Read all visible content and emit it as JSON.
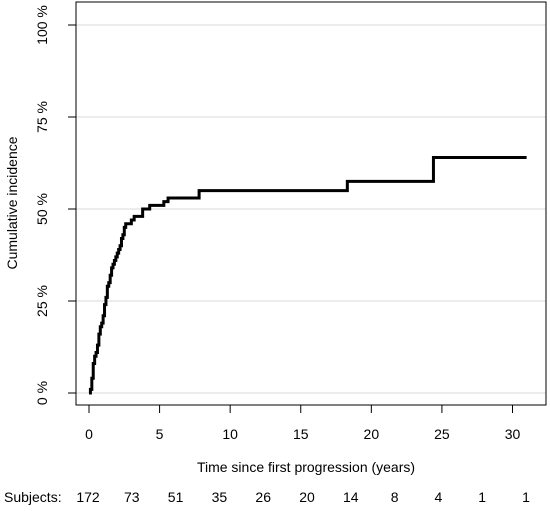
{
  "chart_data": {
    "type": "line",
    "title": "",
    "xlabel": "Time since first progression (years)",
    "ylabel": "Cumulative incidence",
    "xlim": [
      0,
      31
    ],
    "ylim": [
      0,
      100
    ],
    "x_ticks": [
      0,
      5,
      10,
      15,
      20,
      25,
      30
    ],
    "y_ticks": [
      0,
      25,
      50,
      75,
      100
    ],
    "y_tick_labels": [
      "0 %",
      "25 %",
      "50 %",
      "75 %",
      "100 %"
    ],
    "grid": "horizontal",
    "colors": {
      "line": "#000000",
      "grid": "#d9d9d9",
      "frame": "#000000"
    },
    "series": [
      {
        "step": true,
        "x": [
          0,
          0.1,
          0.2,
          0.3,
          0.4,
          0.5,
          0.6,
          0.7,
          0.8,
          0.9,
          1.0,
          1.1,
          1.2,
          1.3,
          1.4,
          1.5,
          1.6,
          1.7,
          1.8,
          1.9,
          2.0,
          2.1,
          2.2,
          2.3,
          2.4,
          2.5,
          2.6,
          2.8,
          3.0,
          3.2,
          3.5,
          3.8,
          4.0,
          4.3,
          5.0,
          5.3,
          5.6,
          6.8,
          7.8,
          18.3,
          24.4,
          31.0
        ],
        "y": [
          0,
          1,
          4,
          8,
          10,
          11,
          13,
          16,
          18,
          19,
          21,
          24,
          26,
          29,
          30,
          32,
          34,
          35,
          36,
          37,
          38,
          39,
          40,
          42,
          43,
          45,
          46,
          46,
          47,
          48,
          48,
          50,
          50,
          51,
          51,
          52,
          53,
          53,
          55,
          57.5,
          64,
          64
        ]
      }
    ],
    "risk_table": {
      "label": "Subjects:",
      "times": [
        0,
        3,
        6,
        9,
        12,
        15,
        18,
        21,
        24,
        27,
        30
      ],
      "counts": [
        "172",
        "73",
        "51",
        "35",
        "26",
        "20",
        "14",
        "8",
        "4",
        "1",
        "1"
      ]
    }
  }
}
